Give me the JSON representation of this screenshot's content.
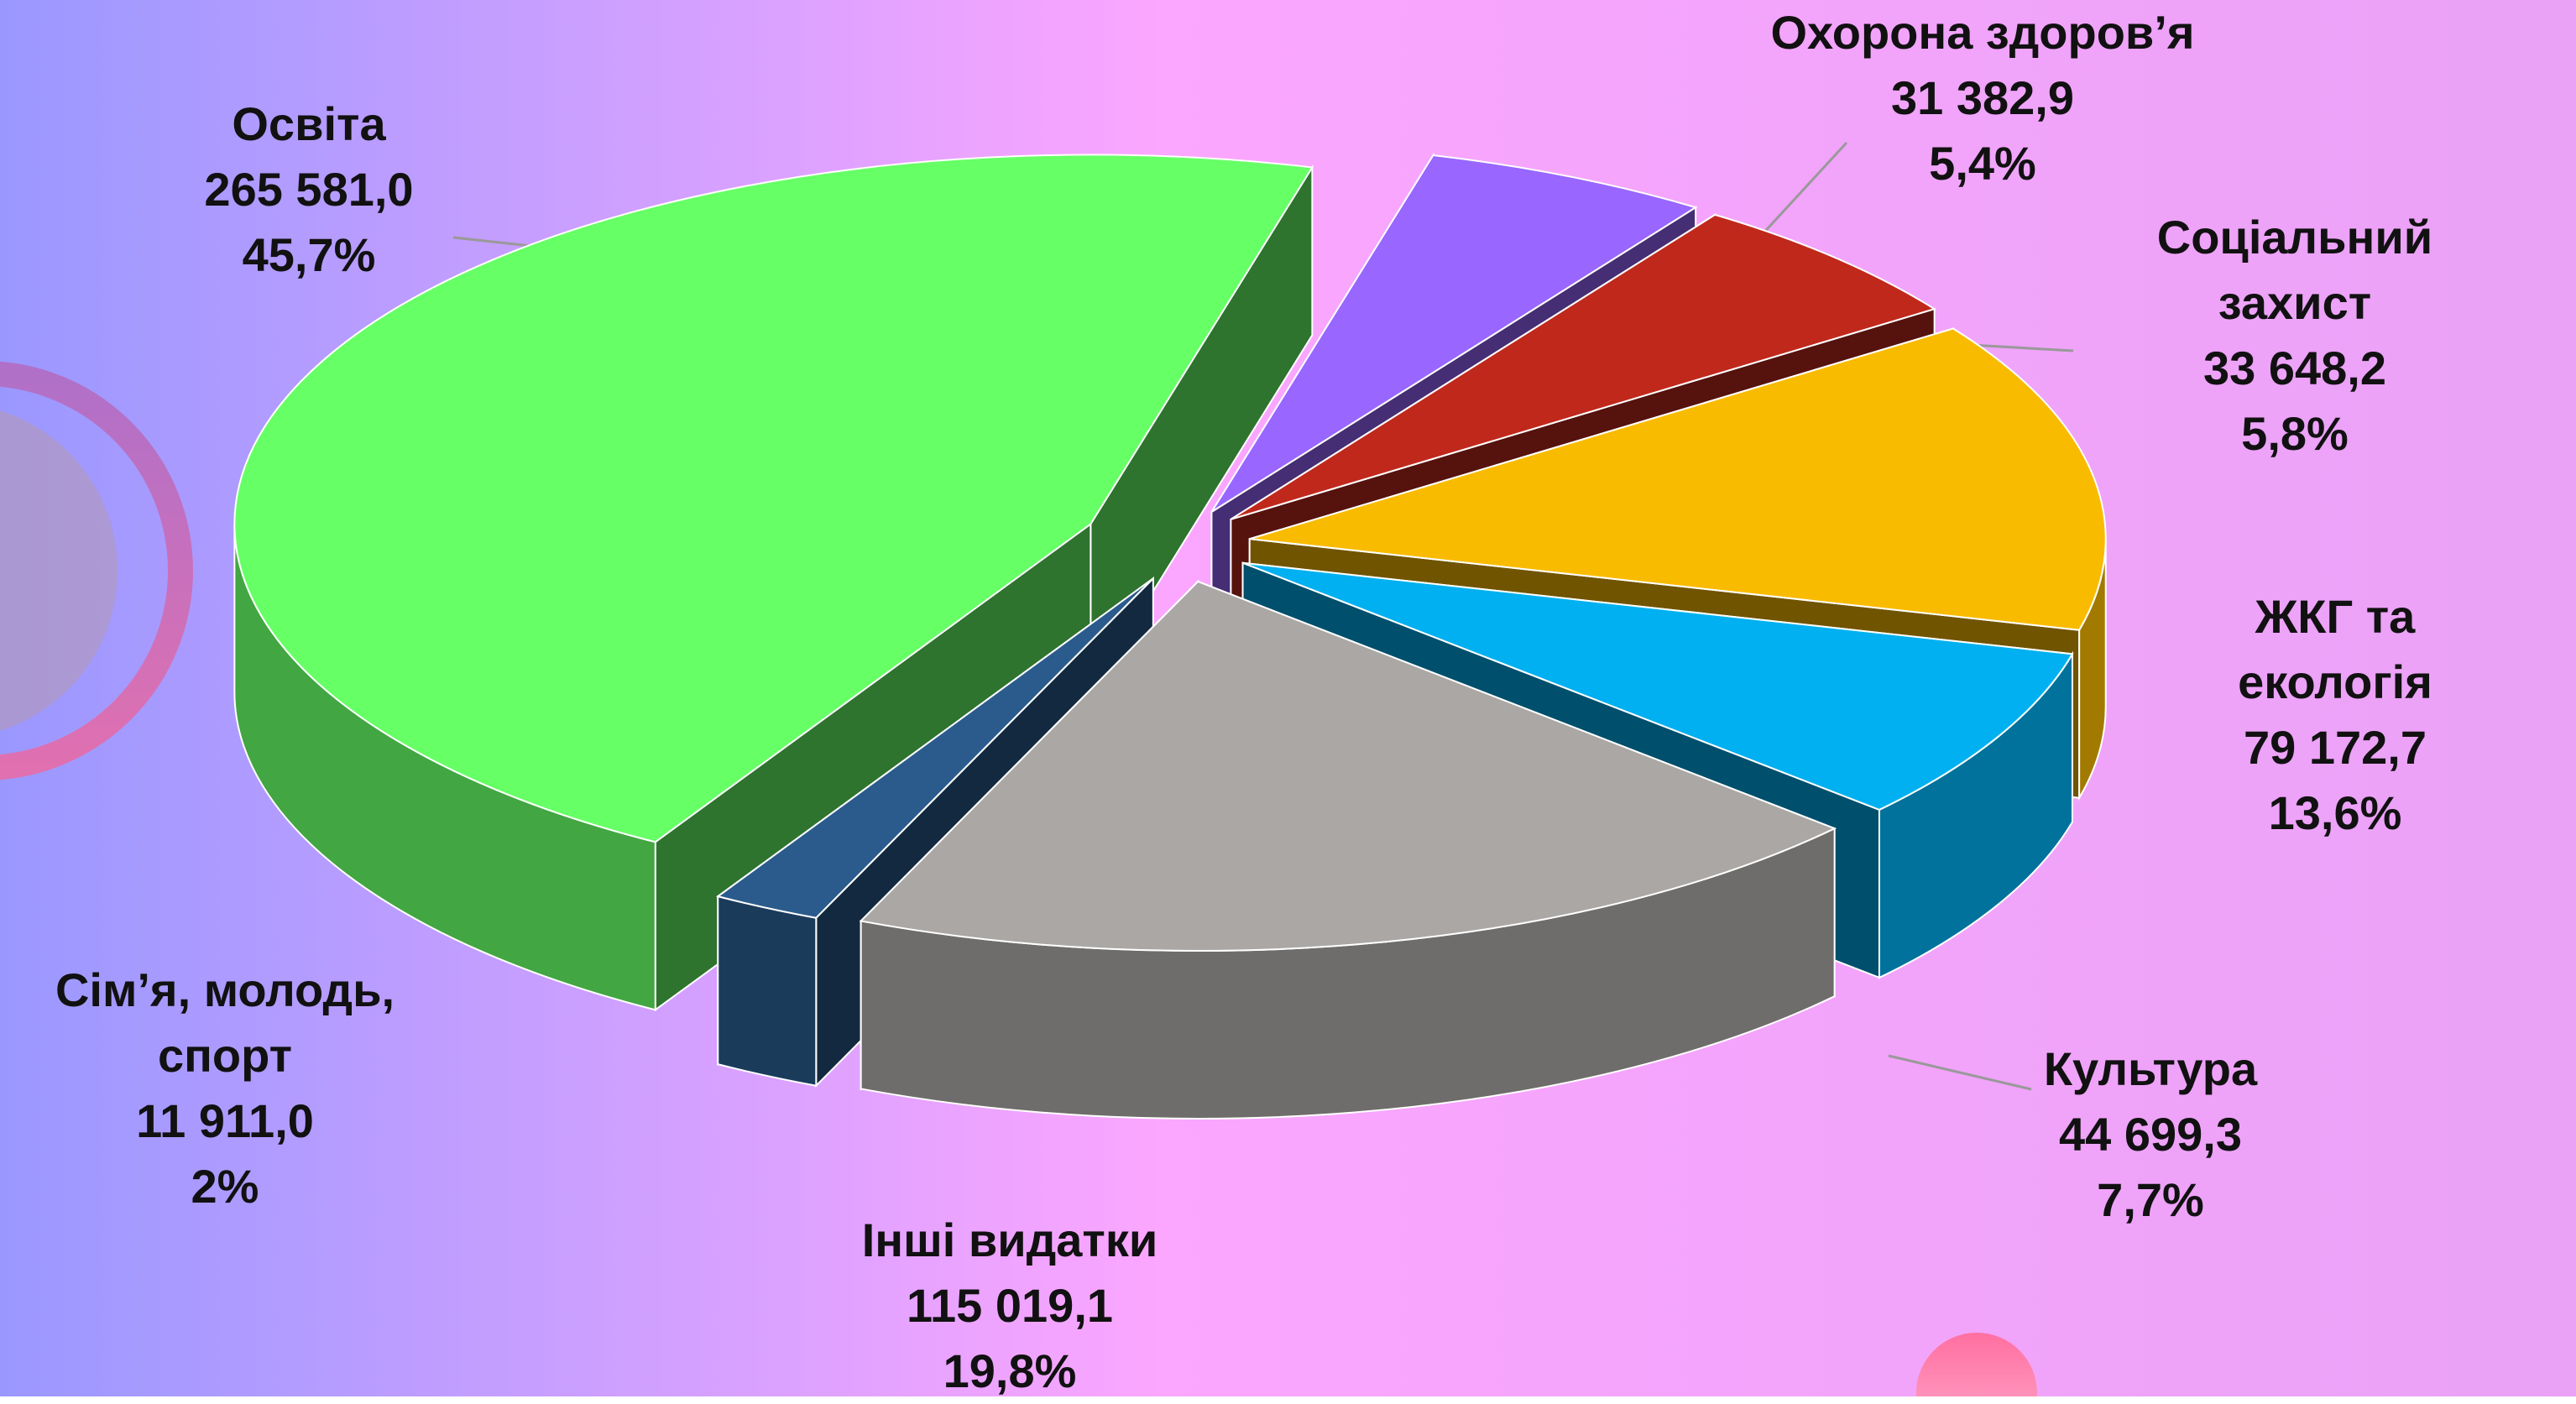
{
  "chart_data": {
    "type": "pie3d",
    "categories": [
      "Охорона здоров’я",
      "Соціальний захист",
      "ЖКГ та екологія",
      "Культура",
      "Інші видатки",
      "Сім’я, молодь, спорт",
      "Освіта"
    ],
    "values": [
      31382.9,
      33648.2,
      79172.7,
      44699.3,
      115019.1,
      11911.0,
      265581.0
    ],
    "value_labels": [
      "31 382,9",
      "33 648,2",
      "79 172,7",
      "44 699,3",
      "115 019,1",
      "11 911,0",
      "265 581,0"
    ],
    "percents": [
      5.4,
      5.8,
      13.6,
      7.7,
      19.8,
      2,
      45.7
    ],
    "percent_labels": [
      "5,4%",
      "5,8%",
      "13,6%",
      "7,7%",
      "19,8%",
      "2%",
      "45,7%"
    ],
    "colors": [
      "#9966ff",
      "#c0281c",
      "#f9bb00",
      "#00b0f0",
      "#aaa7a5",
      "#2a5b8c",
      "#66ff66"
    ]
  }
}
